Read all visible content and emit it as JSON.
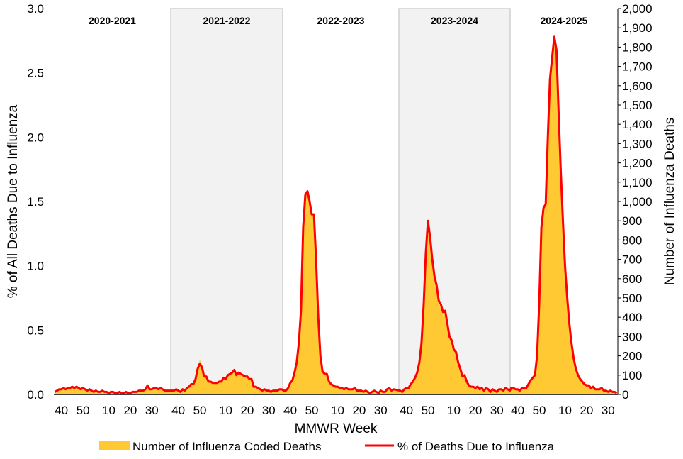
{
  "chart_data": {
    "type": "area+line",
    "xlabel": "MMWR Week",
    "ylabel_left": "% of All Deaths Due to Influenza",
    "ylabel_right": "Number of Influenza Deaths",
    "ylim_left": [
      0,
      3.0
    ],
    "ylim_right": [
      0,
      2000
    ],
    "yticks_left": [
      "0.0",
      "0.5",
      "1.0",
      "1.5",
      "2.0",
      "2.5",
      "3.0"
    ],
    "yticks_right": [
      "0",
      "100",
      "200",
      "300",
      "400",
      "500",
      "600",
      "700",
      "800",
      "900",
      "1,000",
      "1,100",
      "1,200",
      "1,300",
      "1,400",
      "1,500",
      "1,600",
      "1,700",
      "1,800",
      "1,900",
      "2,000"
    ],
    "xtick_weeks": [
      40,
      50,
      10,
      20,
      30
    ],
    "grid": false,
    "legend_placement": "bottom",
    "legend": {
      "area": "Number of Influenza Coded Deaths",
      "line": "% of Deaths Due to Influenza"
    },
    "colors": {
      "area": "#fec933",
      "line": "#ff0000",
      "shade": "#f2f2f2",
      "shade_border": "#d0d0d0"
    },
    "seasons": [
      {
        "label": "2020-2021",
        "shaded": false,
        "pct": [
          0.02,
          0.03,
          0.04,
          0.04,
          0.05,
          0.04,
          0.05,
          0.05,
          0.06,
          0.05,
          0.06,
          0.05,
          0.04,
          0.05,
          0.04,
          0.03,
          0.04,
          0.03,
          0.02,
          0.03,
          0.02,
          0.02,
          0.03,
          0.02,
          0.02,
          0.01,
          0.02,
          0.02,
          0.01,
          0.01,
          0.02,
          0.01,
          0.01,
          0.02,
          0.01,
          0.01,
          0.02,
          0.02,
          0.02,
          0.03,
          0.03,
          0.03,
          0.04,
          0.07,
          0.04,
          0.04,
          0.05,
          0.05,
          0.04,
          0.05,
          0.04,
          0.03
        ],
        "deaths": [
          13,
          20,
          27,
          27,
          33,
          27,
          33,
          33,
          40,
          33,
          40,
          33,
          27,
          33,
          27,
          20,
          27,
          20,
          13,
          20,
          13,
          13,
          20,
          13,
          13,
          7,
          13,
          13,
          7,
          7,
          13,
          7,
          7,
          13,
          7,
          7,
          13,
          13,
          13,
          20,
          20,
          20,
          27,
          47,
          27,
          27,
          33,
          33,
          27,
          33,
          27,
          20
        ]
      },
      {
        "label": "2021-2022",
        "shaded": true,
        "pct": [
          0.03,
          0.03,
          0.04,
          0.03,
          0.02,
          0.04,
          0.03,
          0.05,
          0.06,
          0.08,
          0.08,
          0.12,
          0.2,
          0.24,
          0.21,
          0.14,
          0.14,
          0.1,
          0.1,
          0.09,
          0.09,
          0.09,
          0.1,
          0.1,
          0.13,
          0.12,
          0.15,
          0.16,
          0.17,
          0.19,
          0.15,
          0.17,
          0.16,
          0.15,
          0.14,
          0.14,
          0.12,
          0.12,
          0.06,
          0.06,
          0.05,
          0.04,
          0.03,
          0.04,
          0.03,
          0.03,
          0.02,
          0.03,
          0.03,
          0.03,
          0.04,
          0.04
        ],
        "deaths": [
          20,
          20,
          27,
          20,
          13,
          27,
          20,
          33,
          40,
          53,
          53,
          80,
          140,
          180,
          150,
          95,
          95,
          67,
          67,
          60,
          60,
          60,
          67,
          67,
          87,
          80,
          100,
          107,
          113,
          127,
          100,
          113,
          107,
          100,
          93,
          93,
          80,
          80,
          40,
          40,
          33,
          27,
          20,
          27,
          20,
          20,
          13,
          20,
          20,
          20,
          27,
          27
        ]
      },
      {
        "label": "2022-2023",
        "shaded": false,
        "pct": [
          0.03,
          0.03,
          0.05,
          0.09,
          0.11,
          0.17,
          0.25,
          0.4,
          0.65,
          1.3,
          1.55,
          1.58,
          1.5,
          1.4,
          1.4,
          1.05,
          0.6,
          0.3,
          0.18,
          0.16,
          0.16,
          0.1,
          0.08,
          0.07,
          0.06,
          0.06,
          0.05,
          0.05,
          0.04,
          0.05,
          0.04,
          0.04,
          0.04,
          0.05,
          0.03,
          0.03,
          0.03,
          0.02,
          0.03,
          0.02,
          0.01,
          0.02,
          0.03,
          0.02,
          0.01,
          0.03,
          0.02,
          0.02,
          0.04,
          0.05,
          0.03,
          0.04
        ],
        "deaths": [
          20,
          20,
          33,
          60,
          73,
          113,
          167,
          267,
          433,
          867,
          1030,
          1050,
          1010,
          935,
          935,
          700,
          400,
          200,
          120,
          107,
          107,
          67,
          53,
          47,
          40,
          40,
          33,
          33,
          27,
          33,
          27,
          27,
          27,
          33,
          20,
          20,
          20,
          13,
          20,
          13,
          7,
          13,
          20,
          13,
          7,
          20,
          13,
          13,
          27,
          33,
          20,
          27
        ]
      },
      {
        "label": "2023-2024",
        "shaded": true,
        "pct": [
          0.03,
          0.02,
          0.04,
          0.05,
          0.05,
          0.08,
          0.1,
          0.13,
          0.17,
          0.25,
          0.4,
          0.7,
          1.1,
          1.35,
          1.22,
          1.05,
          0.92,
          0.85,
          0.73,
          0.7,
          0.64,
          0.65,
          0.55,
          0.45,
          0.42,
          0.35,
          0.33,
          0.25,
          0.2,
          0.14,
          0.15,
          0.1,
          0.07,
          0.06,
          0.06,
          0.05,
          0.06,
          0.04,
          0.05,
          0.03,
          0.05,
          0.04,
          0.02,
          0.04,
          0.03,
          0.02,
          0.04,
          0.04,
          0.03,
          0.05,
          0.04,
          0.03
        ],
        "deaths": [
          20,
          13,
          27,
          33,
          33,
          53,
          67,
          87,
          113,
          167,
          267,
          467,
          733,
          890,
          800,
          680,
          600,
          555,
          470,
          450,
          410,
          420,
          360,
          295,
          275,
          230,
          215,
          165,
          130,
          90,
          100,
          67,
          47,
          40,
          40,
          33,
          40,
          27,
          33,
          20,
          33,
          27,
          13,
          27,
          20,
          13,
          27,
          27,
          20,
          33,
          27,
          20
        ]
      },
      {
        "label": "2024-2025",
        "shaded": false,
        "pct": [
          0.05,
          0.05,
          0.04,
          0.04,
          0.03,
          0.05,
          0.05,
          0.05,
          0.08,
          0.11,
          0.13,
          0.15,
          0.3,
          0.7,
          1.3,
          1.45,
          1.48,
          2.0,
          2.45,
          2.62,
          2.78,
          2.68,
          2.2,
          1.75,
          1.35,
          1.0,
          0.75,
          0.55,
          0.4,
          0.28,
          0.2,
          0.15,
          0.12,
          0.1,
          0.08,
          0.07,
          0.07,
          0.05,
          0.06,
          0.04,
          0.04,
          0.04,
          0.05,
          0.03,
          0.03,
          0.02,
          0.03,
          0.02,
          0.02,
          0.01
        ],
        "deaths": [
          33,
          33,
          27,
          27,
          20,
          33,
          33,
          33,
          53,
          73,
          87,
          100,
          200,
          467,
          867,
          967,
          987,
          1333,
          1633,
          1747,
          1853,
          1787,
          1467,
          1167,
          900,
          667,
          500,
          367,
          267,
          187,
          133,
          100,
          80,
          67,
          53,
          47,
          47,
          33,
          40,
          27,
          27,
          27,
          33,
          20,
          20,
          13,
          20,
          13,
          13,
          7
        ]
      }
    ]
  }
}
